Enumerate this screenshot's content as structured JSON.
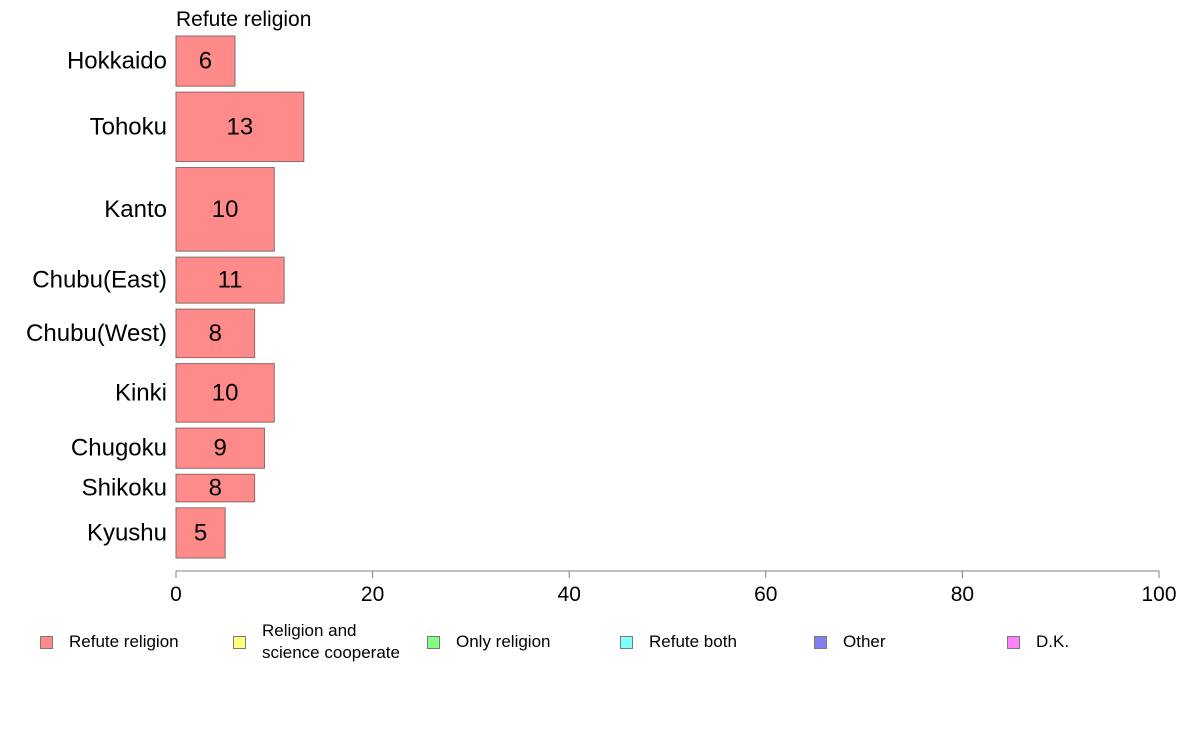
{
  "chart_data": {
    "type": "bar",
    "orientation": "horizontal",
    "title": "Refute religion",
    "categories": [
      "Hokkaido",
      "Tohoku",
      "Kanto",
      "Chubu(East)",
      "Chubu(West)",
      "Kinki",
      "Chugoku",
      "Shikoku",
      "Kyushu"
    ],
    "series": [
      {
        "name": "Refute religion",
        "color": "#ff8a8a",
        "values": [
          6,
          13,
          10,
          11,
          8,
          10,
          9,
          8,
          5
        ],
        "labels": [
          "6",
          "13",
          "10",
          "11",
          "8",
          "10",
          "9",
          "8",
          "5"
        ]
      }
    ],
    "category_weights": [
      0.6,
      0.83,
      1.0,
      0.55,
      0.58,
      0.7,
      0.48,
      0.33,
      0.6
    ],
    "xlim": [
      0,
      100
    ],
    "xticks": [
      0,
      20,
      40,
      60,
      80,
      100
    ],
    "xtick_labels": [
      "0",
      "20",
      "40",
      "60",
      "80",
      "100"
    ],
    "grid": false,
    "legend": {
      "placement": "bottom",
      "entries": [
        {
          "label": "Refute religion",
          "color": "#ff8a8a"
        },
        {
          "label": "Religion and\nscience cooperate",
          "color": "#ffff80"
        },
        {
          "label": "Only religion",
          "color": "#80ff80"
        },
        {
          "label": "Refute both",
          "color": "#80ffff"
        },
        {
          "label": "Other",
          "color": "#8080f0"
        },
        {
          "label": "D.K.",
          "color": "#ff80ff"
        }
      ]
    }
  }
}
